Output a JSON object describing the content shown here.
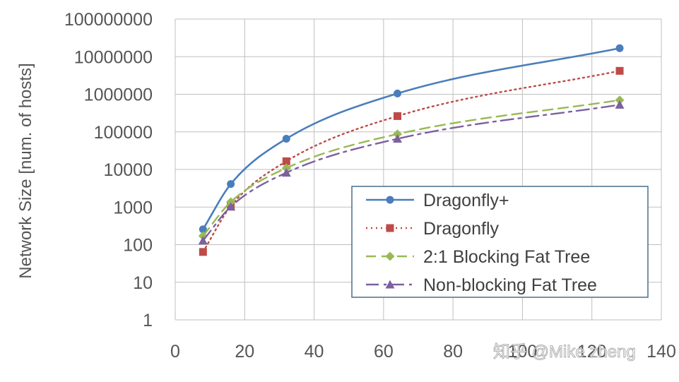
{
  "chart_data": {
    "type": "line",
    "title": "",
    "xlabel": "",
    "ylabel": "Network Size [num. of hosts]",
    "x_ticks": [
      "0",
      "20",
      "40",
      "60",
      "80",
      "100",
      "120",
      "140"
    ],
    "y_ticks": [
      "1",
      "10",
      "100",
      "1000",
      "10000",
      "100000",
      "1000000",
      "10000000",
      "100000000"
    ],
    "xlim": [
      0,
      140
    ],
    "ylim": [
      1,
      100000000
    ],
    "y_scale": "log",
    "grid": true,
    "legend_position": "bottom-right",
    "x": [
      8,
      16,
      32,
      64,
      128
    ],
    "series": [
      {
        "name": "Dragonfly+",
        "color": "#4a7ebb",
        "dash": "solid",
        "marker": "circle",
        "values": [
          256,
          4096,
          65536,
          1048576,
          16777216
        ]
      },
      {
        "name": "Dragonfly",
        "color": "#be4b48",
        "dash": "dotted",
        "marker": "square",
        "values": [
          64,
          1056,
          16512,
          262656,
          4196352
        ]
      },
      {
        "name": "2:1 Blocking Fat Tree",
        "color": "#98b954",
        "dash": "dashed",
        "marker": "diamond",
        "values": [
          171,
          1366,
          10923,
          87381,
          699051
        ]
      },
      {
        "name": "Non-blocking Fat Tree",
        "color": "#7d60a0",
        "dash": "dashdot",
        "marker": "triangle",
        "values": [
          128,
          1024,
          8192,
          65536,
          524288
        ]
      }
    ]
  },
  "watermark": "知乎 @Mike zheng"
}
